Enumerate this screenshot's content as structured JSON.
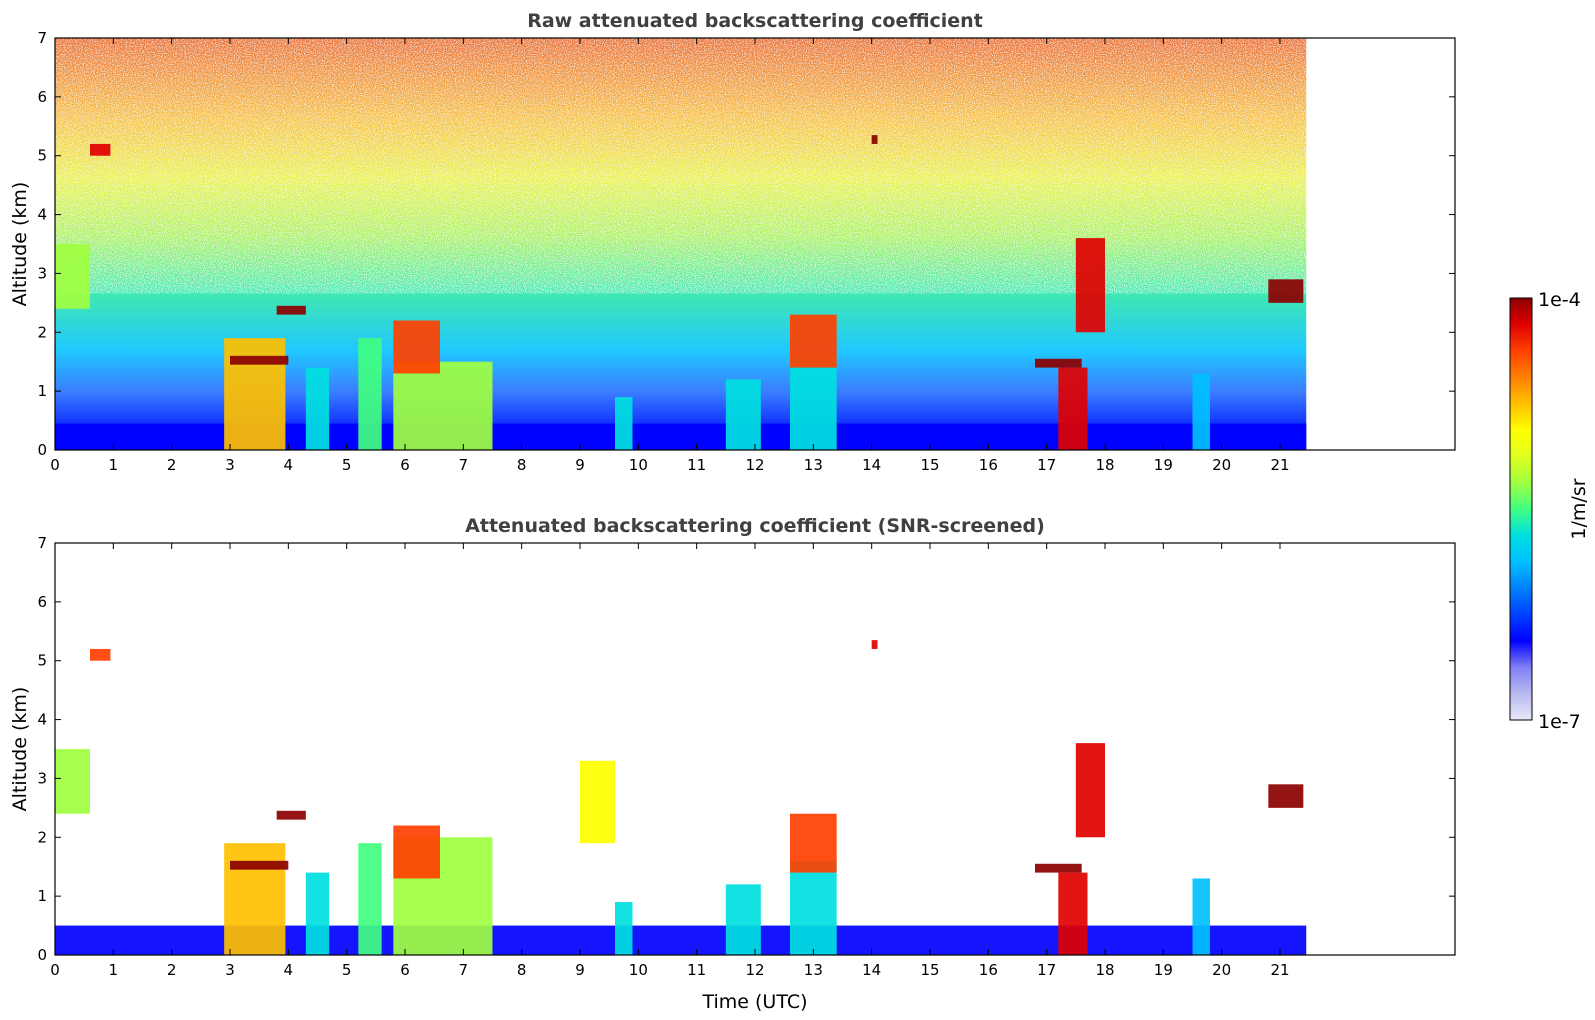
{
  "chart_data": [
    {
      "type": "heatmap",
      "title": "Raw attenuated backscattering coefficient",
      "xlabel": "",
      "ylabel": "Altitude (km)",
      "xlim": [
        0,
        24
      ],
      "ylim": [
        0,
        7
      ],
      "xticks": [
        "0",
        "1",
        "2",
        "3",
        "4",
        "5",
        "6",
        "7",
        "8",
        "9",
        "10",
        "11",
        "12",
        "13",
        "14",
        "15",
        "16",
        "17",
        "18",
        "19",
        "20",
        "21"
      ],
      "yticks": [
        "0",
        "1",
        "2",
        "3",
        "4",
        "5",
        "6",
        "7"
      ],
      "data_end_time": 21.45,
      "grid": false,
      "layers": [
        {
          "t0": 0.0,
          "t1": 21.45,
          "z0": 0.0,
          "z1": 0.45,
          "value": 0.2
        },
        {
          "t0": 2.9,
          "t1": 3.95,
          "z0": 0.0,
          "z1": 1.9,
          "value": 0.72
        },
        {
          "t0": 4.3,
          "t1": 4.7,
          "z0": 0.0,
          "z1": 1.4,
          "value": 0.45
        },
        {
          "t0": 5.2,
          "t1": 5.6,
          "z0": 0.0,
          "z1": 1.9,
          "value": 0.5
        },
        {
          "t0": 5.8,
          "t1": 7.5,
          "z0": 0.0,
          "z1": 1.5,
          "value": 0.55
        },
        {
          "t0": 9.6,
          "t1": 9.9,
          "z0": 0.0,
          "z1": 0.9,
          "value": 0.42
        },
        {
          "t0": 11.5,
          "t1": 12.1,
          "z0": 0.0,
          "z1": 1.2,
          "value": 0.45
        },
        {
          "t0": 12.6,
          "t1": 13.4,
          "z0": 0.0,
          "z1": 1.6,
          "value": 0.45
        },
        {
          "t0": 17.2,
          "t1": 17.7,
          "z0": 0.0,
          "z1": 1.4,
          "value": 0.95
        },
        {
          "t0": 19.5,
          "t1": 19.8,
          "z0": 0.0,
          "z1": 1.3,
          "value": 0.4
        },
        {
          "t0": 12.6,
          "t1": 13.4,
          "z0": 1.4,
          "z1": 2.3,
          "value": 0.88
        },
        {
          "t0": 5.8,
          "t1": 6.6,
          "z0": 1.3,
          "z1": 2.2,
          "value": 0.9
        },
        {
          "t0": 0.0,
          "t1": 0.6,
          "z0": 2.4,
          "z1": 3.5,
          "value": 0.58
        },
        {
          "t0": 17.5,
          "t1": 18.0,
          "z0": 2.0,
          "z1": 3.6,
          "value": 0.93
        },
        {
          "t0": 3.0,
          "t1": 4.0,
          "z0": 1.45,
          "z1": 1.6,
          "value": 0.98
        },
        {
          "t0": 3.8,
          "t1": 4.3,
          "z0": 2.3,
          "z1": 2.45,
          "value": 0.99
        },
        {
          "t0": 16.8,
          "t1": 17.6,
          "z0": 1.4,
          "z1": 1.55,
          "value": 0.98
        },
        {
          "t0": 20.8,
          "t1": 21.4,
          "z0": 2.5,
          "z1": 2.9,
          "value": 0.97
        },
        {
          "t0": 0.6,
          "t1": 0.95,
          "z0": 5.0,
          "z1": 5.2,
          "value": 0.96
        },
        {
          "t0": 14.0,
          "t1": 14.1,
          "z0": 5.2,
          "z1": 5.35,
          "value": 0.97
        }
      ],
      "colorbar": {
        "min_label": "1e-7",
        "max_label": "1e-4",
        "label": "1/m/sr",
        "colors": [
          "#e8e8f8",
          "#b8b8f0",
          "#7f7ff5",
          "#0000ff",
          "#0040ff",
          "#0080ff",
          "#00c0ff",
          "#00e0e0",
          "#40ff80",
          "#a0ff40",
          "#e0ff20",
          "#ffff00",
          "#ffc000",
          "#ff8000",
          "#ff4000",
          "#e00000",
          "#8b0000"
        ]
      }
    },
    {
      "type": "heatmap",
      "title": "Attenuated backscattering coefficient (SNR-screened)",
      "xlabel": "Time (UTC)",
      "ylabel": "Altitude (km)",
      "xlim": [
        0,
        24
      ],
      "ylim": [
        0,
        7
      ],
      "xticks": [
        "0",
        "1",
        "2",
        "3",
        "4",
        "5",
        "6",
        "7",
        "8",
        "9",
        "10",
        "11",
        "12",
        "13",
        "14",
        "15",
        "16",
        "17",
        "18",
        "19",
        "20",
        "21"
      ],
      "yticks": [
        "0",
        "1",
        "2",
        "3",
        "4",
        "5",
        "6",
        "7"
      ],
      "data_end_time": 21.45,
      "grid": false,
      "layers": [
        {
          "t0": 0.0,
          "t1": 21.45,
          "z0": 0.0,
          "z1": 0.5,
          "value": 0.2
        },
        {
          "t0": 2.9,
          "t1": 3.95,
          "z0": 0.0,
          "z1": 1.9,
          "value": 0.72
        },
        {
          "t0": 4.3,
          "t1": 4.7,
          "z0": 0.0,
          "z1": 1.4,
          "value": 0.45
        },
        {
          "t0": 5.2,
          "t1": 5.6,
          "z0": 0.0,
          "z1": 1.9,
          "value": 0.5
        },
        {
          "t0": 5.8,
          "t1": 7.5,
          "z0": 0.0,
          "z1": 2.0,
          "value": 0.55
        },
        {
          "t0": 9.6,
          "t1": 9.9,
          "z0": 0.0,
          "z1": 0.9,
          "value": 0.42
        },
        {
          "t0": 11.5,
          "t1": 12.1,
          "z0": 0.0,
          "z1": 1.2,
          "value": 0.45
        },
        {
          "t0": 12.6,
          "t1": 13.4,
          "z0": 0.0,
          "z1": 1.6,
          "value": 0.45
        },
        {
          "t0": 17.2,
          "t1": 17.7,
          "z0": 0.0,
          "z1": 1.4,
          "value": 0.95
        },
        {
          "t0": 19.5,
          "t1": 19.8,
          "z0": 0.0,
          "z1": 1.3,
          "value": 0.4
        },
        {
          "t0": 12.6,
          "t1": 13.4,
          "z0": 1.4,
          "z1": 2.4,
          "value": 0.85
        },
        {
          "t0": 5.8,
          "t1": 6.6,
          "z0": 1.3,
          "z1": 2.2,
          "value": 0.88
        },
        {
          "t0": 0.0,
          "t1": 0.6,
          "z0": 2.4,
          "z1": 3.5,
          "value": 0.58
        },
        {
          "t0": 9.0,
          "t1": 9.6,
          "z0": 1.9,
          "z1": 3.3,
          "value": 0.68
        },
        {
          "t0": 17.5,
          "t1": 18.0,
          "z0": 2.0,
          "z1": 3.6,
          "value": 0.93
        },
        {
          "t0": 3.0,
          "t1": 4.0,
          "z0": 1.45,
          "z1": 1.6,
          "value": 1.0
        },
        {
          "t0": 3.8,
          "t1": 4.3,
          "z0": 2.3,
          "z1": 2.45,
          "value": 1.0
        },
        {
          "t0": 16.8,
          "t1": 17.6,
          "z0": 1.4,
          "z1": 1.55,
          "value": 1.0
        },
        {
          "t0": 20.8,
          "t1": 21.4,
          "z0": 2.5,
          "z1": 2.9,
          "value": 1.0
        },
        {
          "t0": 0.6,
          "t1": 0.95,
          "z0": 5.0,
          "z1": 5.2,
          "value": 0.9
        },
        {
          "t0": 14.0,
          "t1": 14.1,
          "z0": 5.2,
          "z1": 5.35,
          "value": 0.95
        }
      ]
    }
  ]
}
